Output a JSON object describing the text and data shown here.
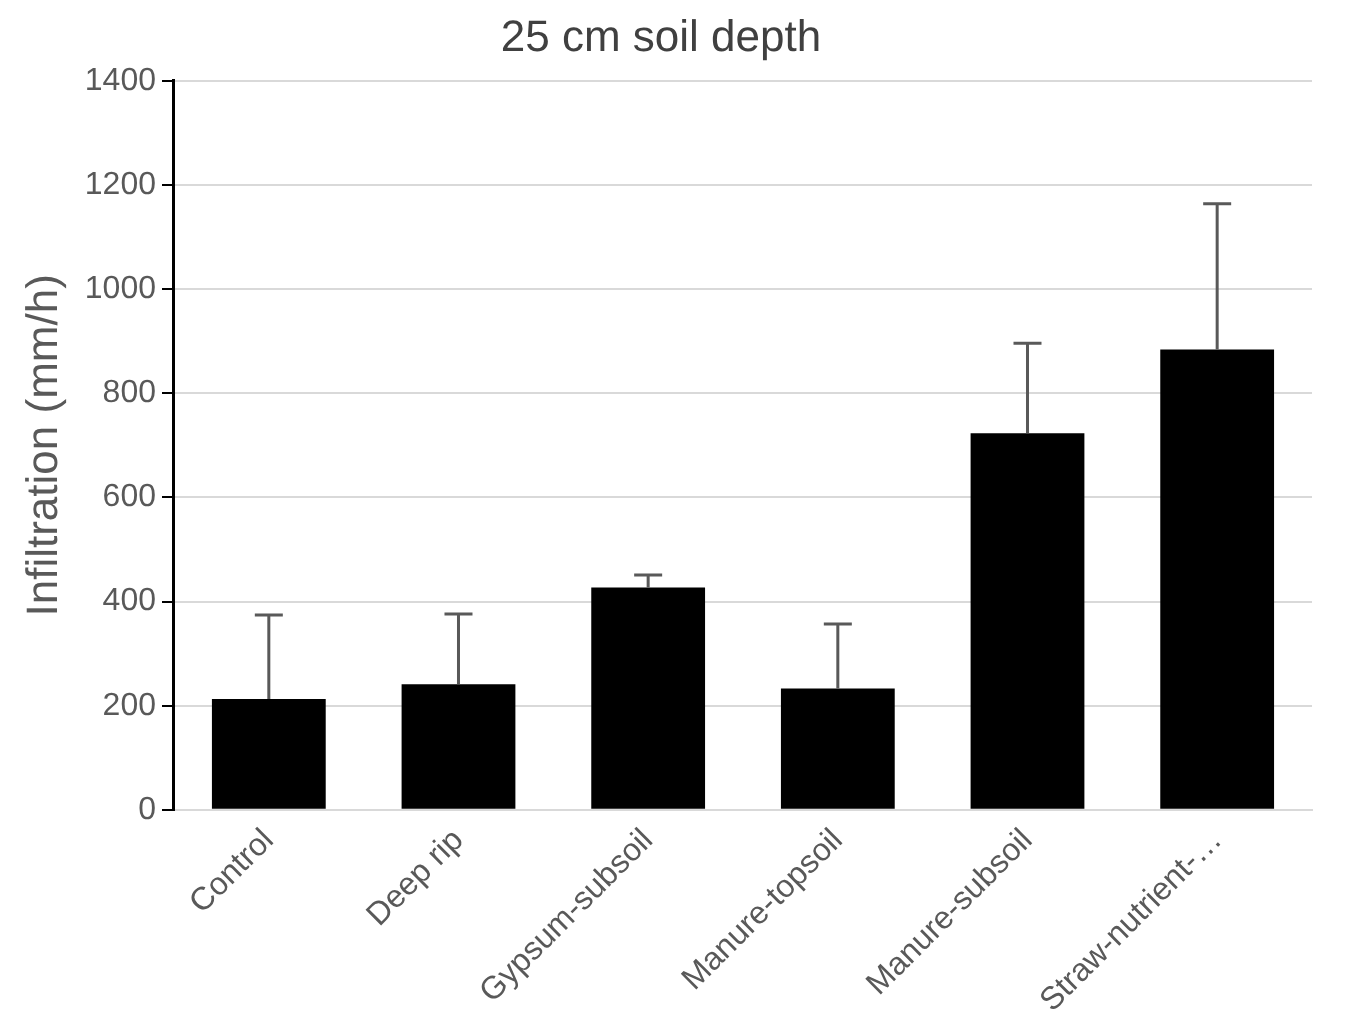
{
  "chart_data": {
    "type": "bar",
    "title": "25 cm soil depth",
    "ylabel": "Infiltration (mm/h)",
    "categories": [
      "Control",
      "Deep rip",
      "Gypsum-subsoil",
      "Manure-topsoil",
      "Manure-subsoil",
      "Straw-nutrient-…"
    ],
    "values": [
      213,
      241,
      427,
      233,
      723,
      884
    ],
    "errors": [
      [
        213,
        374
      ],
      [
        241,
        376
      ],
      [
        427,
        451
      ],
      [
        233,
        357
      ],
      [
        723,
        896
      ],
      [
        884,
        1164
      ]
    ],
    "color": "#000000",
    "ylim": [
      0,
      1400
    ],
    "yticks": [
      0,
      200,
      400,
      600,
      800,
      1000,
      1200,
      1400
    ],
    "grid": "y",
    "legend": false
  }
}
